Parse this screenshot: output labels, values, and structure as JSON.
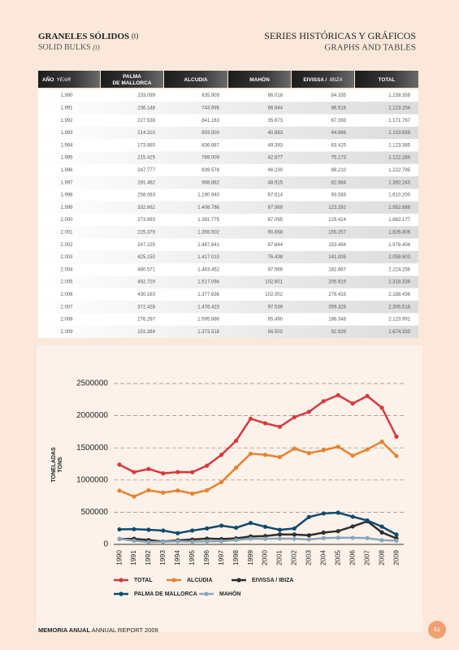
{
  "header": {
    "title": "GRANELES SÓLIDOS",
    "title_unit": "(t)",
    "subtitle": "SOLID BULKS",
    "subtitle_unit": "(t)"
  },
  "section": {
    "title": "SERIES HISTÓRICAS Y GRÁFICOS",
    "subtitle": "GRAPHS AND TABLES"
  },
  "table": {
    "columns": [
      {
        "text": "AÑO",
        "italic": "YEAR"
      },
      {
        "text": "PALMA DE MALLORCA"
      },
      {
        "text": "ALCUDIA"
      },
      {
        "text": "MAHÓN"
      },
      {
        "text": "EIVISSA /",
        "italic": "IBIZA"
      },
      {
        "text": "TOTAL"
      }
    ],
    "rows": [
      [
        "1.990",
        "233.099",
        "835.909",
        "86.016",
        "84.335",
        "1.239.359"
      ],
      [
        "1.991",
        "236.148",
        "743.696",
        "56.844",
        "86.516",
        "1.123.204"
      ],
      [
        "1.992",
        "227.538",
        "841.163",
        "35.673",
        "67.393",
        "1.171.767"
      ],
      [
        "1.993",
        "214.310",
        "803.500",
        "40.883",
        "44.966",
        "1.103.659"
      ],
      [
        "1.994",
        "173.880",
        "836.687",
        "49.393",
        "63.425",
        "1.123.385"
      ],
      [
        "1.995",
        "215.425",
        "789.009",
        "42.677",
        "75.173",
        "1.122.284"
      ],
      [
        "1.996",
        "247.777",
        "839.578",
        "46.230",
        "89.210",
        "1.222.795"
      ],
      [
        "1.997",
        "291.462",
        "968.882",
        "48.915",
        "82.984",
        "1.392.243"
      ],
      [
        "1.998",
        "258.063",
        "1.190.940",
        "67.614",
        "93.583",
        "1.610.200"
      ],
      [
        "1.999",
        "332.662",
        "1.408.766",
        "87.969",
        "123.292",
        "1.952.689"
      ],
      [
        "2.000",
        "273.893",
        "1.391.775",
        "87.095",
        "129.414",
        "1.882.177"
      ],
      [
        "2.001",
        "225.379",
        "1.355.502",
        "90.668",
        "155.257",
        "1.826.806"
      ],
      [
        "2.002",
        "247.225",
        "1.487.841",
        "87.844",
        "153.494",
        "1.976.404"
      ],
      [
        "2.003",
        "425.150",
        "1.417.010",
        "76.438",
        "141.005",
        "2.059.603"
      ],
      [
        "2.004",
        "480.571",
        "1.463.452",
        "97.566",
        "182.667",
        "2.224.256"
      ],
      [
        "2.005",
        "492.729",
        "1.517.094",
        "102.601",
        "205.915",
        "2.318.339"
      ],
      [
        "2.006",
        "430.183",
        "1.377.836",
        "102.002",
        "278.415",
        "2.188.436"
      ],
      [
        "2.007",
        "372.428",
        "1.476.423",
        "97.539",
        "359.328",
        "2.305.518"
      ],
      [
        "2.008",
        "276.267",
        "1.595.886",
        "65.490",
        "186.348",
        "2.123.991"
      ],
      [
        "2.009",
        "151.384",
        "1.373.518",
        "56.502",
        "92.929",
        "1.674.333"
      ]
    ]
  },
  "chart_data": {
    "type": "line",
    "ylabel": [
      "TONELADAS",
      "TONS"
    ],
    "categories": [
      "1990",
      "1991",
      "1992",
      "1993",
      "1994",
      "1995",
      "1996",
      "1997",
      "1998",
      "1999",
      "2000",
      "2001",
      "2002",
      "2003",
      "2004",
      "2005",
      "2006",
      "2007",
      "2008",
      "2009"
    ],
    "ylim": [
      0,
      2500000
    ],
    "yticks": [
      0,
      500000,
      1000000,
      1500000,
      2000000,
      2500000
    ],
    "grid": true,
    "series": [
      {
        "name": "TOTAL",
        "color": "#d8373f",
        "values": [
          1239359,
          1123204,
          1171767,
          1103659,
          1123385,
          1122284,
          1222795,
          1392243,
          1610200,
          1952689,
          1882177,
          1826806,
          1976404,
          2059603,
          2224256,
          2318339,
          2188436,
          2305518,
          2123991,
          1674333
        ]
      },
      {
        "name": "ALCUDIA",
        "color": "#e8812c",
        "values": [
          835909,
          743696,
          841163,
          803500,
          836687,
          789009,
          839578,
          968882,
          1190940,
          1408766,
          1391775,
          1355502,
          1487841,
          1417010,
          1463452,
          1517094,
          1377836,
          1476423,
          1595886,
          1373518
        ]
      },
      {
        "name": "EIVISSA / IBIZA",
        "color": "#2e2e2e",
        "values": [
          84335,
          86516,
          67393,
          44966,
          63425,
          75173,
          89210,
          82984,
          93583,
          123292,
          129414,
          155257,
          153494,
          141005,
          182667,
          205915,
          278415,
          359328,
          186348,
          92929
        ]
      },
      {
        "name": "PALMA DE MALLORCA",
        "color": "#0e4a6e",
        "values": [
          233099,
          236148,
          227538,
          214310,
          173880,
          215425,
          247777,
          291462,
          258063,
          332662,
          273893,
          225379,
          247225,
          425150,
          480571,
          492729,
          430183,
          372428,
          276267,
          151384
        ]
      },
      {
        "name": "MAHÓN",
        "color": "#8aa6ba",
        "values": [
          86016,
          56844,
          35673,
          40883,
          49393,
          42677,
          46230,
          48915,
          67614,
          87969,
          87095,
          90668,
          87844,
          76438,
          97566,
          102601,
          102002,
          97539,
          65490,
          56502
        ]
      }
    ]
  },
  "footer": {
    "title": "MEMORIA ANUAL",
    "subtitle": "ANNUAL REPORT 2009",
    "page": "61"
  }
}
